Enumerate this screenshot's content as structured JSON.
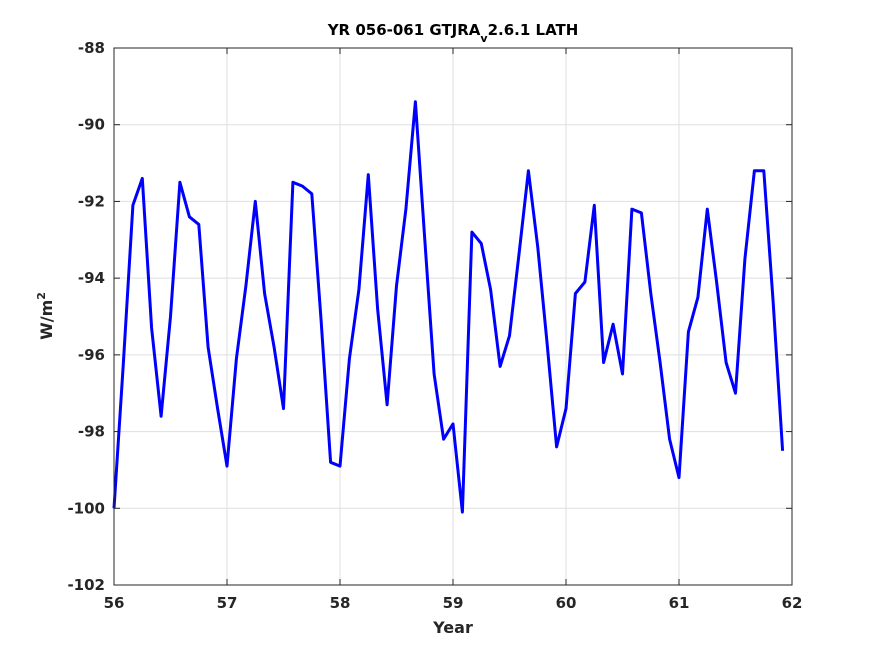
{
  "chart_data": {
    "type": "line",
    "title": {
      "prefix": "YR 056-061 GTJRA",
      "subscript": "v",
      "suffix": "2.6.1 LATH"
    },
    "xlabel": "Year",
    "ylabel": {
      "base": "W/m",
      "superscript": "2"
    },
    "xlim": [
      56,
      62
    ],
    "ylim": [
      -102,
      -88
    ],
    "xticks": [
      56,
      57,
      58,
      59,
      60,
      61,
      62
    ],
    "yticks": [
      -102,
      -100,
      -98,
      -96,
      -94,
      -92,
      -90,
      -88
    ],
    "grid": true,
    "series": [
      {
        "color": "#0000ff",
        "x": [
          56.0,
          56.083,
          56.167,
          56.25,
          56.333,
          56.417,
          56.5,
          56.583,
          56.667,
          56.75,
          56.833,
          56.917,
          57.0,
          57.083,
          57.167,
          57.25,
          57.333,
          57.417,
          57.5,
          57.583,
          57.667,
          57.75,
          57.833,
          57.917,
          58.0,
          58.083,
          58.167,
          58.25,
          58.333,
          58.417,
          58.5,
          58.583,
          58.667,
          58.75,
          58.833,
          58.917,
          59.0,
          59.083,
          59.167,
          59.25,
          59.333,
          59.417,
          59.5,
          59.583,
          59.667,
          59.75,
          59.833,
          59.917,
          60.0,
          60.083,
          60.167,
          60.25,
          60.333,
          60.417,
          60.5,
          60.583,
          60.667,
          60.75,
          60.833,
          60.917,
          61.0,
          61.083,
          61.167,
          61.25,
          61.333,
          61.417,
          61.5,
          61.583,
          61.667,
          61.75,
          61.833,
          61.917
        ],
        "y": [
          -100.0,
          -96.2,
          -92.1,
          -91.4,
          -95.3,
          -97.6,
          -95.0,
          -91.5,
          -92.4,
          -92.6,
          -95.8,
          -97.4,
          -98.9,
          -96.1,
          -94.2,
          -92.0,
          -94.4,
          -95.8,
          -97.4,
          -91.5,
          -91.6,
          -91.8,
          -95.1,
          -98.8,
          -98.9,
          -96.1,
          -94.3,
          -91.3,
          -94.8,
          -97.3,
          -94.2,
          -92.2,
          -89.4,
          -93.0,
          -96.5,
          -98.2,
          -97.8,
          -100.1,
          -92.8,
          -93.1,
          -94.3,
          -96.3,
          -95.5,
          -93.4,
          -91.2,
          -93.2,
          -95.7,
          -98.4,
          -97.4,
          -94.4,
          -94.1,
          -92.1,
          -96.2,
          -95.2,
          -96.5,
          -92.2,
          -92.3,
          -94.4,
          -96.2,
          -98.2,
          -99.2,
          -95.4,
          -94.5,
          -92.2,
          -94.1,
          -96.2,
          -97.0,
          -93.5,
          -91.2,
          -91.2,
          -94.6,
          -98.5
        ]
      }
    ]
  }
}
